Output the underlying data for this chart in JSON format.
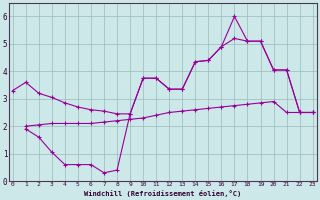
{
  "xlabel": "Windchill (Refroidissement éolien,°C)",
  "bg_color": "#cce8e8",
  "grid_color": "#99bbbb",
  "line_color": "#990099",
  "line1_x": [
    0,
    1,
    2,
    3,
    4,
    5,
    6,
    7,
    8,
    9,
    10,
    11,
    12,
    13,
    14,
    15,
    16,
    17,
    18,
    19,
    20,
    21,
    22,
    23
  ],
  "line1_y": [
    3.3,
    3.6,
    3.2,
    3.05,
    2.85,
    2.7,
    2.6,
    2.55,
    2.45,
    2.45,
    3.75,
    3.75,
    3.35,
    3.35,
    4.35,
    4.4,
    4.9,
    5.2,
    5.1,
    5.1,
    4.05,
    4.05,
    2.5,
    2.5
  ],
  "line2_x": [
    1,
    2,
    3,
    4,
    5,
    6,
    7,
    8,
    9,
    10,
    11,
    12,
    13,
    14,
    15,
    16,
    17,
    18,
    19,
    20,
    21,
    22,
    23
  ],
  "line2_y": [
    1.9,
    1.6,
    1.05,
    0.6,
    0.6,
    0.6,
    0.3,
    0.4,
    2.45,
    3.75,
    3.75,
    3.35,
    3.35,
    4.35,
    4.4,
    4.9,
    6.0,
    5.1,
    5.1,
    4.05,
    4.05,
    2.5,
    2.5
  ],
  "line3_x": [
    1,
    2,
    3,
    4,
    5,
    6,
    7,
    8,
    9,
    10,
    11,
    12,
    13,
    14,
    15,
    16,
    17,
    18,
    19,
    20,
    21,
    22,
    23
  ],
  "line3_y": [
    2.0,
    2.05,
    2.1,
    2.1,
    2.1,
    2.1,
    2.15,
    2.2,
    2.25,
    2.3,
    2.4,
    2.5,
    2.55,
    2.6,
    2.65,
    2.7,
    2.75,
    2.8,
    2.85,
    2.9,
    2.5,
    2.5,
    2.5
  ],
  "ylim": [
    0,
    6.5
  ],
  "xlim": [
    -0.3,
    23.3
  ],
  "yticks": [
    0,
    1,
    2,
    3,
    4,
    5,
    6
  ],
  "xticks": [
    0,
    1,
    2,
    3,
    4,
    5,
    6,
    7,
    8,
    9,
    10,
    11,
    12,
    13,
    14,
    15,
    16,
    17,
    18,
    19,
    20,
    21,
    22,
    23
  ]
}
